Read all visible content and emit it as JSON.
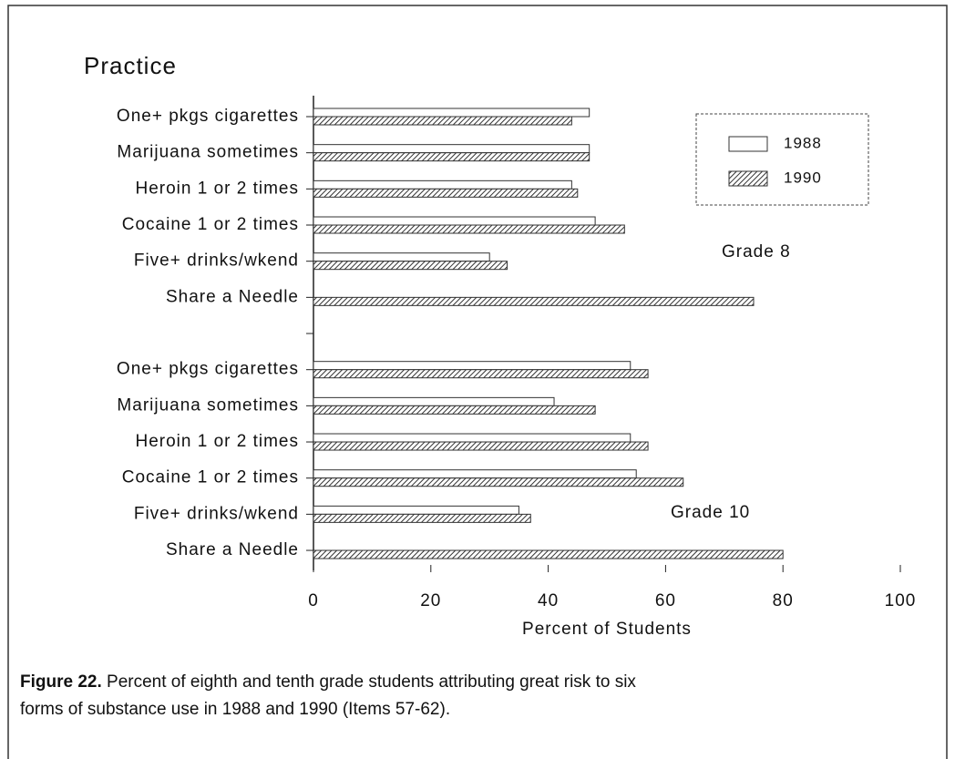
{
  "chart_data": {
    "type": "hbar",
    "title": "Practice",
    "categories": [
      "One+ pkgs cigarettes",
      "Marijuana sometimes",
      "Heroin 1 or 2 times",
      "Cocaine 1 or 2 times",
      "Five+ drinks/wkend",
      "Share a Needle",
      null,
      "One+ pkgs cigarettes",
      "Marijuana sometimes",
      "Heroin 1 or 2 times",
      "Cocaine 1 or 2 times",
      "Five+ drinks/wkend",
      "Share a Needle"
    ],
    "series": [
      {
        "name": "1988",
        "color": "#ffffff",
        "hatch": false,
        "values": [
          47,
          47,
          44,
          48,
          30,
          null,
          null,
          54,
          41,
          54,
          55,
          35,
          null
        ]
      },
      {
        "name": "1990",
        "color": "#555555",
        "hatch": true,
        "values": [
          44,
          47,
          45,
          53,
          33,
          75,
          null,
          57,
          48,
          57,
          63,
          37,
          80
        ]
      }
    ],
    "xlim": [
      0,
      100
    ],
    "xticks": [
      0,
      20,
      40,
      60,
      80,
      100
    ],
    "xlabel": "Percent of Students",
    "legend": "upper right",
    "annotations": [
      "Grade 8",
      "Grade 10"
    ],
    "caption_label": "Figure 22.",
    "caption": [
      " Percent of eighth and tenth grade students attributing great risk to six",
      "forms of substance use in 1988 and 1990 (Items 57-62)."
    ]
  }
}
